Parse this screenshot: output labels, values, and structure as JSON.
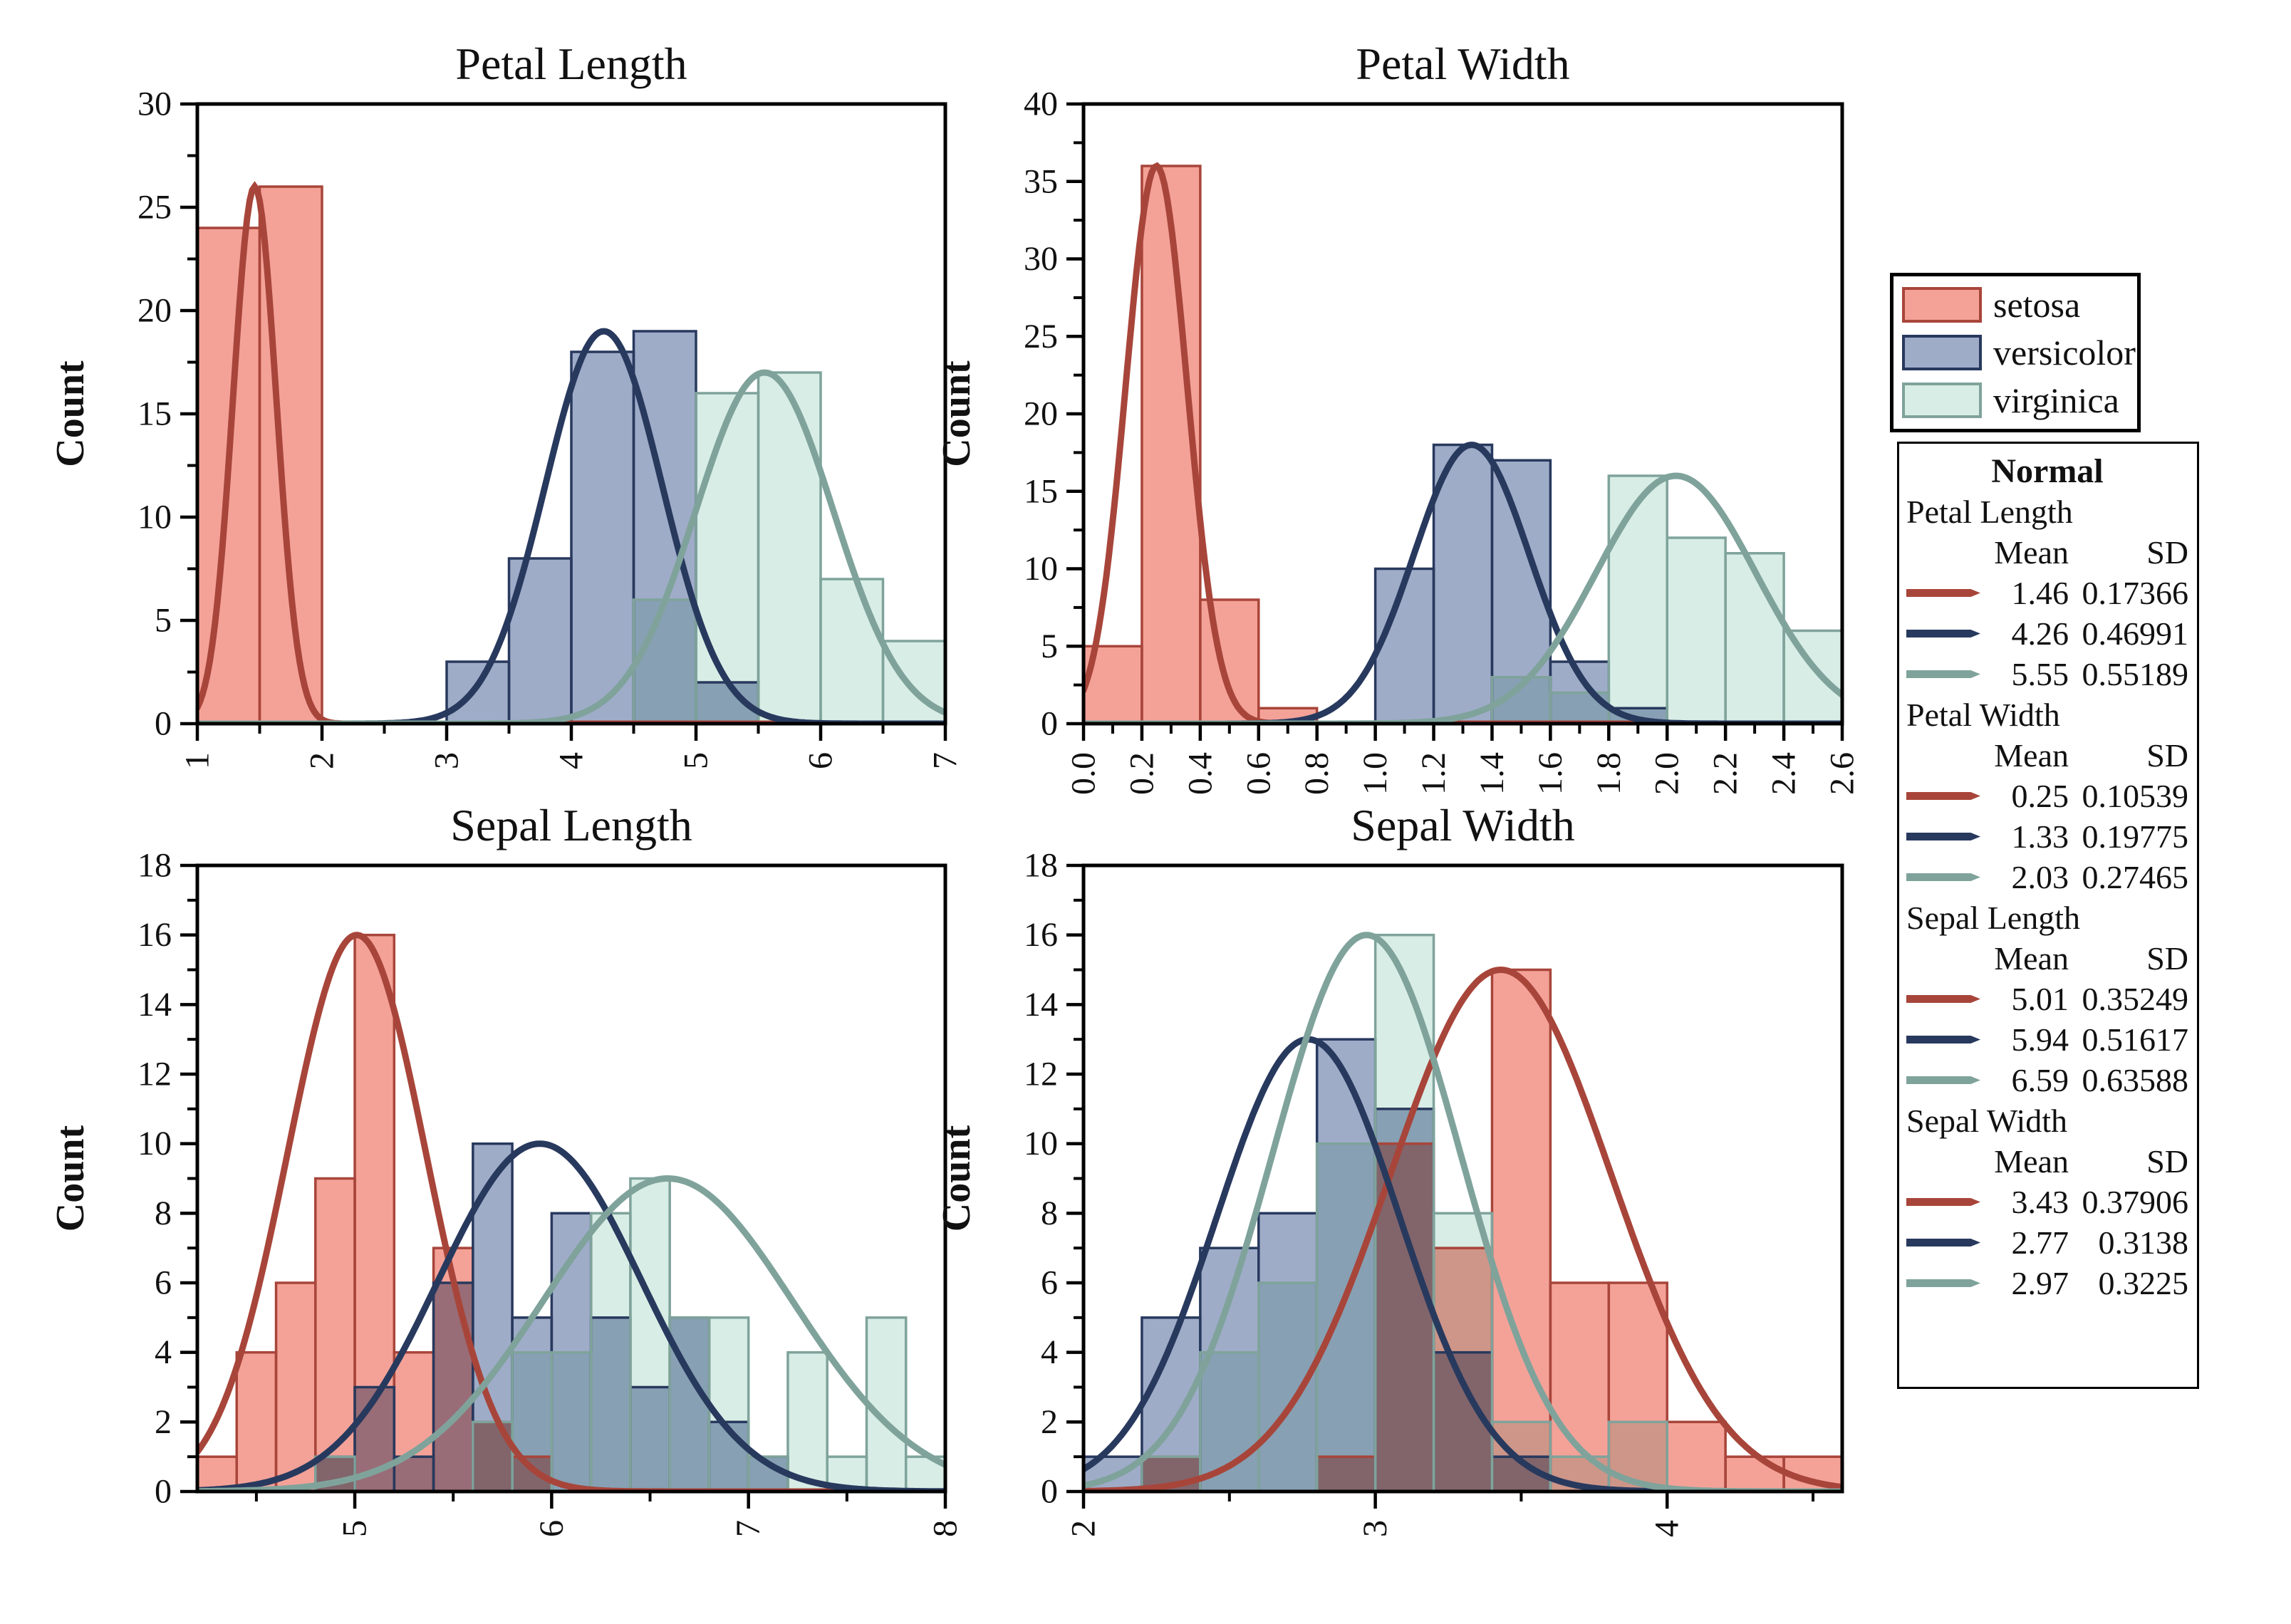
{
  "figure": {
    "background": "#ffffff"
  },
  "colors": {
    "setosa": {
      "fill": "#F4A298",
      "edge": "#A8453A",
      "curve": "#A8453A"
    },
    "versicolor": {
      "fill": "#9FACC8",
      "edge": "#28395E",
      "curve": "#28395E"
    },
    "virginica": {
      "fill": "#D8EDE5",
      "edge": "#7FA39B",
      "curve": "#7FA39B"
    }
  },
  "legend": {
    "items": [
      {
        "label": "setosa"
      },
      {
        "label": "versicolor"
      },
      {
        "label": "virginica"
      }
    ]
  },
  "stats_panel": {
    "title": "Normal",
    "col_headers": {
      "mean": "Mean",
      "sd": "SD"
    },
    "sections": [
      {
        "label": "Petal Length",
        "rows": [
          {
            "series": "setosa",
            "mean": "1.46",
            "sd": "0.17366"
          },
          {
            "series": "versicolor",
            "mean": "4.26",
            "sd": "0.46991"
          },
          {
            "series": "virginica",
            "mean": "5.55",
            "sd": "0.55189"
          }
        ]
      },
      {
        "label": "Petal Width",
        "rows": [
          {
            "series": "setosa",
            "mean": "0.25",
            "sd": "0.10539"
          },
          {
            "series": "versicolor",
            "mean": "1.33",
            "sd": "0.19775"
          },
          {
            "series": "virginica",
            "mean": "2.03",
            "sd": "0.27465"
          }
        ]
      },
      {
        "label": "Sepal Length",
        "rows": [
          {
            "series": "setosa",
            "mean": "5.01",
            "sd": "0.35249"
          },
          {
            "series": "versicolor",
            "mean": "5.94",
            "sd": "0.51617"
          },
          {
            "series": "virginica",
            "mean": "6.59",
            "sd": "0.63588"
          }
        ]
      },
      {
        "label": "Sepal Width",
        "rows": [
          {
            "series": "setosa",
            "mean": "3.43",
            "sd": "0.37906"
          },
          {
            "series": "versicolor",
            "mean": "2.77",
            "sd": "0.3138"
          },
          {
            "series": "virginica",
            "mean": "2.97",
            "sd": "0.3225"
          }
        ]
      }
    ]
  },
  "chart_data": [
    {
      "type": "histogram+normal",
      "title": "Petal Length",
      "ylabel": "Count",
      "xlim": [
        1,
        7
      ],
      "ylim": [
        0,
        30
      ],
      "x_major_step": 1,
      "x_minor_step": 0.5,
      "x_decimals": 0,
      "y_major_step": 5,
      "y_minor_step": 2.5,
      "series": [
        {
          "name": "setosa",
          "bin_start": 1.0,
          "bin_width": 0.5,
          "counts": [
            24,
            26
          ],
          "normal": {
            "mean": 1.46,
            "sd": 0.17366,
            "peak": 26
          }
        },
        {
          "name": "versicolor",
          "bin_start": 3.0,
          "bin_width": 0.5,
          "counts": [
            3,
            8,
            18,
            19,
            2
          ],
          "normal": {
            "mean": 4.26,
            "sd": 0.46991,
            "peak": 19
          }
        },
        {
          "name": "virginica",
          "bin_start": 4.5,
          "bin_width": 0.5,
          "counts": [
            6,
            16,
            17,
            7,
            4
          ],
          "normal": {
            "mean": 5.55,
            "sd": 0.55189,
            "peak": 17
          }
        }
      ]
    },
    {
      "type": "histogram+normal",
      "title": "Petal Width",
      "ylabel": "Count",
      "xlim": [
        0,
        2.6
      ],
      "ylim": [
        0,
        40
      ],
      "x_major_step": 0.2,
      "x_minor_step": 0.1,
      "x_decimals": 1,
      "y_major_step": 5,
      "y_minor_step": 2.5,
      "series": [
        {
          "name": "setosa",
          "bin_start": 0.0,
          "bin_width": 0.2,
          "counts": [
            5,
            36,
            8,
            1
          ],
          "normal": {
            "mean": 0.25,
            "sd": 0.10539,
            "peak": 36
          }
        },
        {
          "name": "versicolor",
          "bin_start": 1.0,
          "bin_width": 0.2,
          "counts": [
            10,
            18,
            17,
            4,
            1
          ],
          "normal": {
            "mean": 1.33,
            "sd": 0.19775,
            "peak": 18
          }
        },
        {
          "name": "virginica",
          "bin_start": 1.4,
          "bin_width": 0.2,
          "counts": [
            3,
            2,
            16,
            12,
            11,
            6
          ],
          "normal": {
            "mean": 2.03,
            "sd": 0.27465,
            "peak": 16
          }
        }
      ]
    },
    {
      "type": "histogram+normal",
      "title": "Sepal Length",
      "ylabel": "Count",
      "xlim": [
        4.2,
        8
      ],
      "ylim": [
        0,
        18
      ],
      "x_major_step": 1,
      "x_minor_step": 0.5,
      "x_decimals": 0,
      "y_major_step": 2,
      "y_minor_step": 1,
      "series": [
        {
          "name": "setosa",
          "bin_start": 4.2,
          "bin_width": 0.2,
          "counts": [
            1,
            4,
            6,
            9,
            16,
            4,
            7,
            2,
            1
          ],
          "normal": {
            "mean": 5.01,
            "sd": 0.35249,
            "peak": 16
          }
        },
        {
          "name": "versicolor",
          "bin_start": 4.8,
          "bin_width": 0.2,
          "counts": [
            1,
            3,
            1,
            6,
            10,
            5,
            8,
            5,
            3,
            5,
            2,
            1
          ],
          "normal": {
            "mean": 5.94,
            "sd": 0.51617,
            "peak": 10
          }
        },
        {
          "name": "virginica",
          "bin_start": 4.8,
          "bin_width": 0.2,
          "counts": [
            1,
            0,
            0,
            0,
            2,
            4,
            4,
            8,
            9,
            5,
            5,
            1,
            4,
            1,
            5,
            1
          ],
          "normal": {
            "mean": 6.59,
            "sd": 0.63588,
            "peak": 9
          }
        }
      ]
    },
    {
      "type": "histogram+normal",
      "title": "Sepal Width",
      "ylabel": "Count",
      "xlim": [
        2,
        4.6
      ],
      "ylim": [
        0,
        18
      ],
      "x_major_step": 1,
      "x_minor_step": 0.5,
      "x_decimals": 0,
      "y_major_step": 2,
      "y_minor_step": 1,
      "series": [
        {
          "name": "setosa",
          "bin_start": 2.2,
          "bin_width": 0.2,
          "counts": [
            1,
            0,
            0,
            1,
            10,
            7,
            15,
            6,
            6,
            2,
            1,
            1
          ],
          "normal": {
            "mean": 3.43,
            "sd": 0.37906,
            "peak": 15
          }
        },
        {
          "name": "versicolor",
          "bin_start": 2.0,
          "bin_width": 0.2,
          "counts": [
            1,
            5,
            7,
            8,
            13,
            11,
            4,
            1
          ],
          "normal": {
            "mean": 2.77,
            "sd": 0.3138,
            "peak": 13
          }
        },
        {
          "name": "virginica",
          "bin_start": 2.2,
          "bin_width": 0.2,
          "counts": [
            1,
            4,
            6,
            10,
            16,
            8,
            2,
            1,
            2
          ],
          "normal": {
            "mean": 2.97,
            "sd": 0.3225,
            "peak": 16
          }
        }
      ]
    }
  ]
}
